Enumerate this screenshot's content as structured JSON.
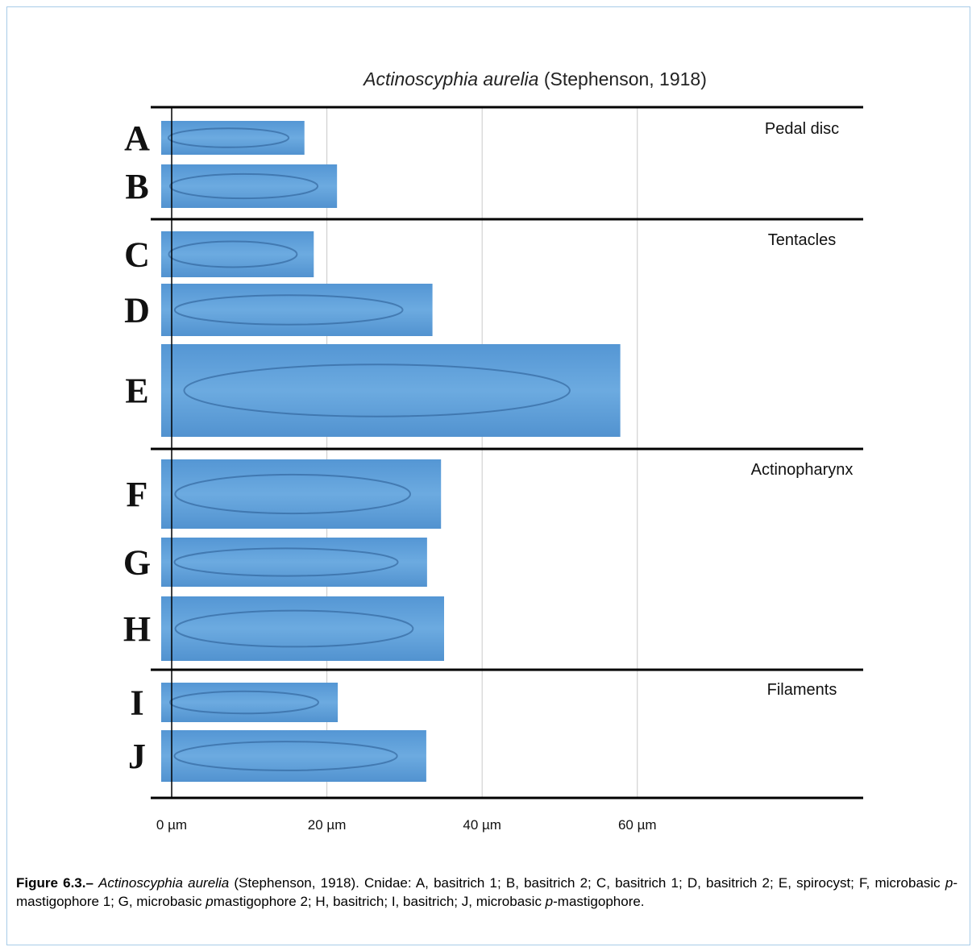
{
  "chart_data": {
    "type": "bar",
    "orientation": "horizontal",
    "title": [
      "Actinoscyphia aurelia",
      " (Stephenson, 1918)"
    ],
    "groups": [
      {
        "label": "Pedal disc",
        "categories": [
          "A",
          "B"
        ],
        "values": [
          17.1,
          21.3
        ]
      },
      {
        "label": "Tentacles",
        "categories": [
          "C",
          "D",
          "E"
        ],
        "values": [
          18.3,
          33.6,
          57.8
        ]
      },
      {
        "label": "Actinopharynx",
        "categories": [
          "F",
          "G",
          "H"
        ],
        "values": [
          34.7,
          32.9,
          35.1
        ]
      },
      {
        "label": "Filaments",
        "categories": [
          "I",
          "J"
        ],
        "values": [
          21.4,
          32.8
        ]
      }
    ],
    "color": "#5b9fd9",
    "xlim": [
      -2.7,
      89.1
    ],
    "xticks": [
      {
        "value": 0,
        "label": "0 µm"
      },
      {
        "value": 20,
        "label": "20 µm"
      },
      {
        "value": 40,
        "label": "40 µm"
      },
      {
        "value": 60,
        "label": "60 µm"
      }
    ],
    "grid": true
  },
  "caption": [
    "Figure 6.3.–",
    "Actinoscyphia aurelia",
    " (Stephenson, 1918). Cnidae: A, basitrich 1; B, basitrich 2; C, basitrich 1; D, basitrich 2; E, spirocyst; F, microbasic ",
    "p",
    "-mastigophore 1; G, microbasic ",
    "p",
    "mastigophore 2; H, basitrich; I, basitrich; J, microbasic ",
    "p",
    "-mastigophore."
  ]
}
